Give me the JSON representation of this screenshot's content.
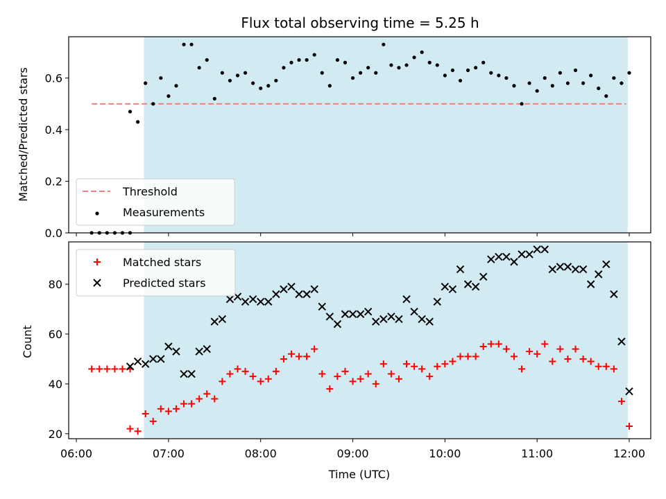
{
  "chart_data": [
    {
      "type": "scatter",
      "title": "Flux total observing time = 5.25 h",
      "xlabel": "",
      "ylabel": "Matched/Predicted stars",
      "xlim": [
        "06:00",
        "12:00"
      ],
      "ylim": [
        0,
        0.76
      ],
      "yticks": [
        "0.0",
        "0.2",
        "0.4",
        "0.6"
      ],
      "grid": false,
      "legend": "lower-left",
      "shaded_interval": {
        "start": "06:44",
        "end": "11:59",
        "color": "#add8e6"
      },
      "threshold": {
        "name": "Threshold",
        "value": 0.5,
        "x_start": "06:10",
        "x_end": "11:58",
        "color": "#f08080",
        "style": "dashed"
      },
      "series": [
        {
          "name": "Measurements",
          "marker": "dot",
          "color": "#000000",
          "points": [
            [
              "06:10",
              0.0
            ],
            [
              "06:15",
              0.0
            ],
            [
              "06:20",
              0.0
            ],
            [
              "06:25",
              0.0
            ],
            [
              "06:30",
              0.0
            ],
            [
              "06:35",
              0.0
            ],
            [
              "06:35",
              0.47
            ],
            [
              "06:40",
              0.43
            ],
            [
              "06:45",
              0.58
            ],
            [
              "06:50",
              0.5
            ],
            [
              "06:55",
              0.6
            ],
            [
              "07:00",
              0.53
            ],
            [
              "07:05",
              0.57
            ],
            [
              "07:10",
              0.73
            ],
            [
              "07:15",
              0.73
            ],
            [
              "07:20",
              0.64
            ],
            [
              "07:25",
              0.67
            ],
            [
              "07:30",
              0.52
            ],
            [
              "07:35",
              0.62
            ],
            [
              "07:40",
              0.59
            ],
            [
              "07:45",
              0.61
            ],
            [
              "07:50",
              0.62
            ],
            [
              "07:55",
              0.58
            ],
            [
              "08:00",
              0.56
            ],
            [
              "08:05",
              0.57
            ],
            [
              "08:10",
              0.59
            ],
            [
              "08:15",
              0.64
            ],
            [
              "08:20",
              0.66
            ],
            [
              "08:25",
              0.67
            ],
            [
              "08:30",
              0.67
            ],
            [
              "08:35",
              0.69
            ],
            [
              "08:40",
              0.62
            ],
            [
              "08:45",
              0.57
            ],
            [
              "08:50",
              0.67
            ],
            [
              "08:55",
              0.66
            ],
            [
              "09:00",
              0.6
            ],
            [
              "09:05",
              0.62
            ],
            [
              "09:10",
              0.64
            ],
            [
              "09:15",
              0.62
            ],
            [
              "09:20",
              0.73
            ],
            [
              "09:25",
              0.65
            ],
            [
              "09:30",
              0.64
            ],
            [
              "09:35",
              0.65
            ],
            [
              "09:40",
              0.68
            ],
            [
              "09:45",
              0.7
            ],
            [
              "09:50",
              0.66
            ],
            [
              "09:55",
              0.65
            ],
            [
              "10:00",
              0.61
            ],
            [
              "10:05",
              0.63
            ],
            [
              "10:10",
              0.59
            ],
            [
              "10:15",
              0.63
            ],
            [
              "10:20",
              0.64
            ],
            [
              "10:25",
              0.66
            ],
            [
              "10:30",
              0.62
            ],
            [
              "10:35",
              0.61
            ],
            [
              "10:40",
              0.6
            ],
            [
              "10:45",
              0.57
            ],
            [
              "10:50",
              0.5
            ],
            [
              "10:55",
              0.58
            ],
            [
              "11:00",
              0.55
            ],
            [
              "11:05",
              0.6
            ],
            [
              "11:10",
              0.57
            ],
            [
              "11:15",
              0.62
            ],
            [
              "11:20",
              0.58
            ],
            [
              "11:25",
              0.63
            ],
            [
              "11:30",
              0.58
            ],
            [
              "11:35",
              0.61
            ],
            [
              "11:40",
              0.56
            ],
            [
              "11:45",
              0.53
            ],
            [
              "11:50",
              0.6
            ],
            [
              "11:55",
              0.58
            ],
            [
              "12:00",
              0.62
            ]
          ]
        }
      ]
    },
    {
      "type": "scatter",
      "title": "",
      "xlabel": "Time (UTC)",
      "ylabel": "Count",
      "xlim": [
        "06:00",
        "12:00"
      ],
      "ylim": [
        18,
        97
      ],
      "xticks": [
        "06:00",
        "07:00",
        "08:00",
        "09:00",
        "10:00",
        "11:00",
        "12:00"
      ],
      "yticks": [
        "20",
        "40",
        "60",
        "80"
      ],
      "grid": false,
      "legend": "upper-left",
      "shaded_interval": {
        "start": "06:44",
        "end": "11:59",
        "color": "#add8e6"
      },
      "series": [
        {
          "name": "Matched stars",
          "marker": "plus",
          "color": "#ff0000",
          "points": [
            [
              "06:10",
              46
            ],
            [
              "06:15",
              46
            ],
            [
              "06:20",
              46
            ],
            [
              "06:25",
              46
            ],
            [
              "06:30",
              46
            ],
            [
              "06:35",
              46
            ],
            [
              "06:35",
              22
            ],
            [
              "06:40",
              21
            ],
            [
              "06:45",
              28
            ],
            [
              "06:50",
              25
            ],
            [
              "06:55",
              30
            ],
            [
              "07:00",
              29
            ],
            [
              "07:05",
              30
            ],
            [
              "07:10",
              32
            ],
            [
              "07:15",
              32
            ],
            [
              "07:20",
              34
            ],
            [
              "07:25",
              36
            ],
            [
              "07:30",
              34
            ],
            [
              "07:35",
              41
            ],
            [
              "07:40",
              44
            ],
            [
              "07:45",
              46
            ],
            [
              "07:50",
              45
            ],
            [
              "07:55",
              43
            ],
            [
              "08:00",
              41
            ],
            [
              "08:05",
              42
            ],
            [
              "08:10",
              45
            ],
            [
              "08:15",
              50
            ],
            [
              "08:20",
              52
            ],
            [
              "08:25",
              51
            ],
            [
              "08:30",
              51
            ],
            [
              "08:35",
              54
            ],
            [
              "08:40",
              44
            ],
            [
              "08:45",
              38
            ],
            [
              "08:50",
              43
            ],
            [
              "08:55",
              45
            ],
            [
              "09:00",
              41
            ],
            [
              "09:05",
              42
            ],
            [
              "09:10",
              44
            ],
            [
              "09:15",
              40
            ],
            [
              "09:20",
              48
            ],
            [
              "09:25",
              44
            ],
            [
              "09:30",
              42
            ],
            [
              "09:35",
              48
            ],
            [
              "09:40",
              47
            ],
            [
              "09:45",
              46
            ],
            [
              "09:50",
              43
            ],
            [
              "09:55",
              47
            ],
            [
              "10:00",
              48
            ],
            [
              "10:05",
              49
            ],
            [
              "10:10",
              51
            ],
            [
              "10:15",
              51
            ],
            [
              "10:20",
              51
            ],
            [
              "10:25",
              55
            ],
            [
              "10:30",
              56
            ],
            [
              "10:35",
              56
            ],
            [
              "10:40",
              54
            ],
            [
              "10:45",
              51
            ],
            [
              "10:50",
              46
            ],
            [
              "10:55",
              53
            ],
            [
              "11:00",
              52
            ],
            [
              "11:05",
              56
            ],
            [
              "11:10",
              49
            ],
            [
              "11:15",
              54
            ],
            [
              "11:20",
              50
            ],
            [
              "11:25",
              54
            ],
            [
              "11:30",
              50
            ],
            [
              "11:35",
              49
            ],
            [
              "11:40",
              47
            ],
            [
              "11:45",
              47
            ],
            [
              "11:50",
              46
            ],
            [
              "11:55",
              33
            ],
            [
              "12:00",
              23
            ]
          ]
        },
        {
          "name": "Predicted stars",
          "marker": "x",
          "color": "#000000",
          "points": [
            [
              "06:35",
              47
            ],
            [
              "06:40",
              49
            ],
            [
              "06:45",
              48
            ],
            [
              "06:50",
              50
            ],
            [
              "06:55",
              50
            ],
            [
              "07:00",
              55
            ],
            [
              "07:05",
              53
            ],
            [
              "07:10",
              44
            ],
            [
              "07:15",
              44
            ],
            [
              "07:20",
              53
            ],
            [
              "07:25",
              54
            ],
            [
              "07:30",
              65
            ],
            [
              "07:35",
              66
            ],
            [
              "07:40",
              74
            ],
            [
              "07:45",
              75
            ],
            [
              "07:50",
              73
            ],
            [
              "07:55",
              74
            ],
            [
              "08:00",
              73
            ],
            [
              "08:05",
              73
            ],
            [
              "08:10",
              76
            ],
            [
              "08:15",
              78
            ],
            [
              "08:20",
              79
            ],
            [
              "08:25",
              76
            ],
            [
              "08:30",
              76
            ],
            [
              "08:35",
              78
            ],
            [
              "08:40",
              71
            ],
            [
              "08:45",
              67
            ],
            [
              "08:50",
              64
            ],
            [
              "08:55",
              68
            ],
            [
              "09:00",
              68
            ],
            [
              "09:05",
              68
            ],
            [
              "09:10",
              69
            ],
            [
              "09:15",
              65
            ],
            [
              "09:20",
              66
            ],
            [
              "09:25",
              67
            ],
            [
              "09:30",
              66
            ],
            [
              "09:35",
              74
            ],
            [
              "09:40",
              69
            ],
            [
              "09:45",
              66
            ],
            [
              "09:50",
              65
            ],
            [
              "09:55",
              73
            ],
            [
              "10:00",
              79
            ],
            [
              "10:05",
              78
            ],
            [
              "10:10",
              86
            ],
            [
              "10:15",
              80
            ],
            [
              "10:20",
              79
            ],
            [
              "10:25",
              83
            ],
            [
              "10:30",
              90
            ],
            [
              "10:35",
              91
            ],
            [
              "10:40",
              91
            ],
            [
              "10:45",
              89
            ],
            [
              "10:50",
              92
            ],
            [
              "10:55",
              92
            ],
            [
              "11:00",
              94
            ],
            [
              "11:05",
              94
            ],
            [
              "11:10",
              86
            ],
            [
              "11:15",
              87
            ],
            [
              "11:20",
              87
            ],
            [
              "11:25",
              86
            ],
            [
              "11:30",
              86
            ],
            [
              "11:35",
              80
            ],
            [
              "11:40",
              84
            ],
            [
              "11:45",
              88
            ],
            [
              "11:50",
              76
            ],
            [
              "11:55",
              57
            ],
            [
              "12:00",
              37
            ]
          ]
        }
      ]
    }
  ]
}
